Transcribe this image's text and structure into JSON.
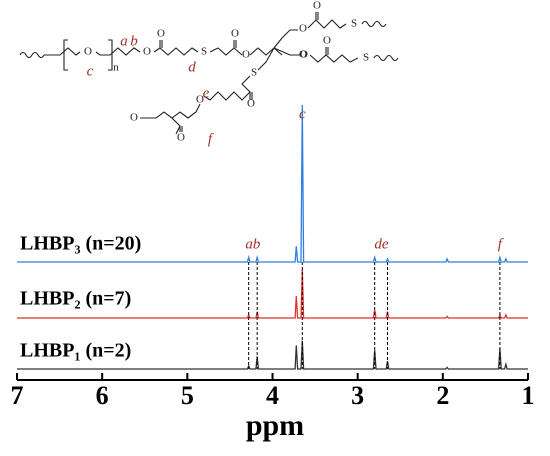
{
  "chart_data": {
    "type": "nmr",
    "xlim": [
      7,
      1
    ],
    "xticks": [
      7,
      6,
      5,
      4,
      3,
      2,
      1
    ],
    "xlabel": "ppm",
    "x": [
      7,
      4.295,
      4.28,
      4.265,
      4.195,
      4.18,
      4.165,
      3.735,
      3.72,
      3.705,
      3.665,
      3.65,
      3.635,
      2.815,
      2.8,
      2.785,
      2.665,
      2.65,
      2.635,
      1.965,
      1.95,
      1.935,
      1.345,
      1.33,
      1.315,
      1.275,
      1.26,
      1.245,
      1
    ],
    "series": [
      {
        "name": "LHBP₃ (n=20)",
        "color": "#2f7fe0",
        "values": [
          0,
          0,
          3,
          0,
          0,
          3,
          0,
          0,
          10,
          0,
          0,
          100,
          0,
          0,
          3,
          0,
          0,
          2,
          0,
          0,
          2,
          0,
          0,
          3,
          0,
          0,
          2,
          0,
          0
        ]
      },
      {
        "name": "LHBP₂ (n=7)",
        "color": "#e0302a",
        "values": [
          0,
          0,
          2,
          0,
          0,
          4,
          0,
          0,
          14,
          0,
          0,
          31,
          0,
          0,
          5,
          0,
          0,
          4,
          0,
          0,
          1,
          0,
          0,
          2,
          0,
          0,
          2,
          0,
          0
        ]
      },
      {
        "name": "LHBP₁ (n=2)",
        "color": "#333333",
        "values": [
          0,
          0,
          2,
          0,
          0,
          8,
          0,
          0,
          15,
          0,
          0,
          18,
          0,
          0,
          12,
          0,
          0,
          5,
          0,
          0,
          1,
          0,
          0,
          13,
          0,
          0,
          3,
          0,
          0
        ]
      }
    ],
    "markers": [
      4.28,
      4.18,
      3.65,
      2.8,
      2.65,
      1.33
    ],
    "peak_labels": [
      {
        "text": "ab",
        "x": 4.23
      },
      {
        "text": "c",
        "x": 3.65
      },
      {
        "text": "de",
        "x": 2.72
      },
      {
        "text": "f",
        "x": 1.33
      }
    ]
  },
  "structure": {
    "labels": [
      "a",
      "b",
      "c",
      "d",
      "e",
      "f"
    ],
    "atoms": [
      "O",
      "n",
      "O",
      "O",
      "S",
      "O",
      "O",
      "O",
      "O",
      "O",
      "S",
      "O",
      "O",
      "S",
      "S",
      "O",
      "O",
      "O",
      "O"
    ]
  }
}
